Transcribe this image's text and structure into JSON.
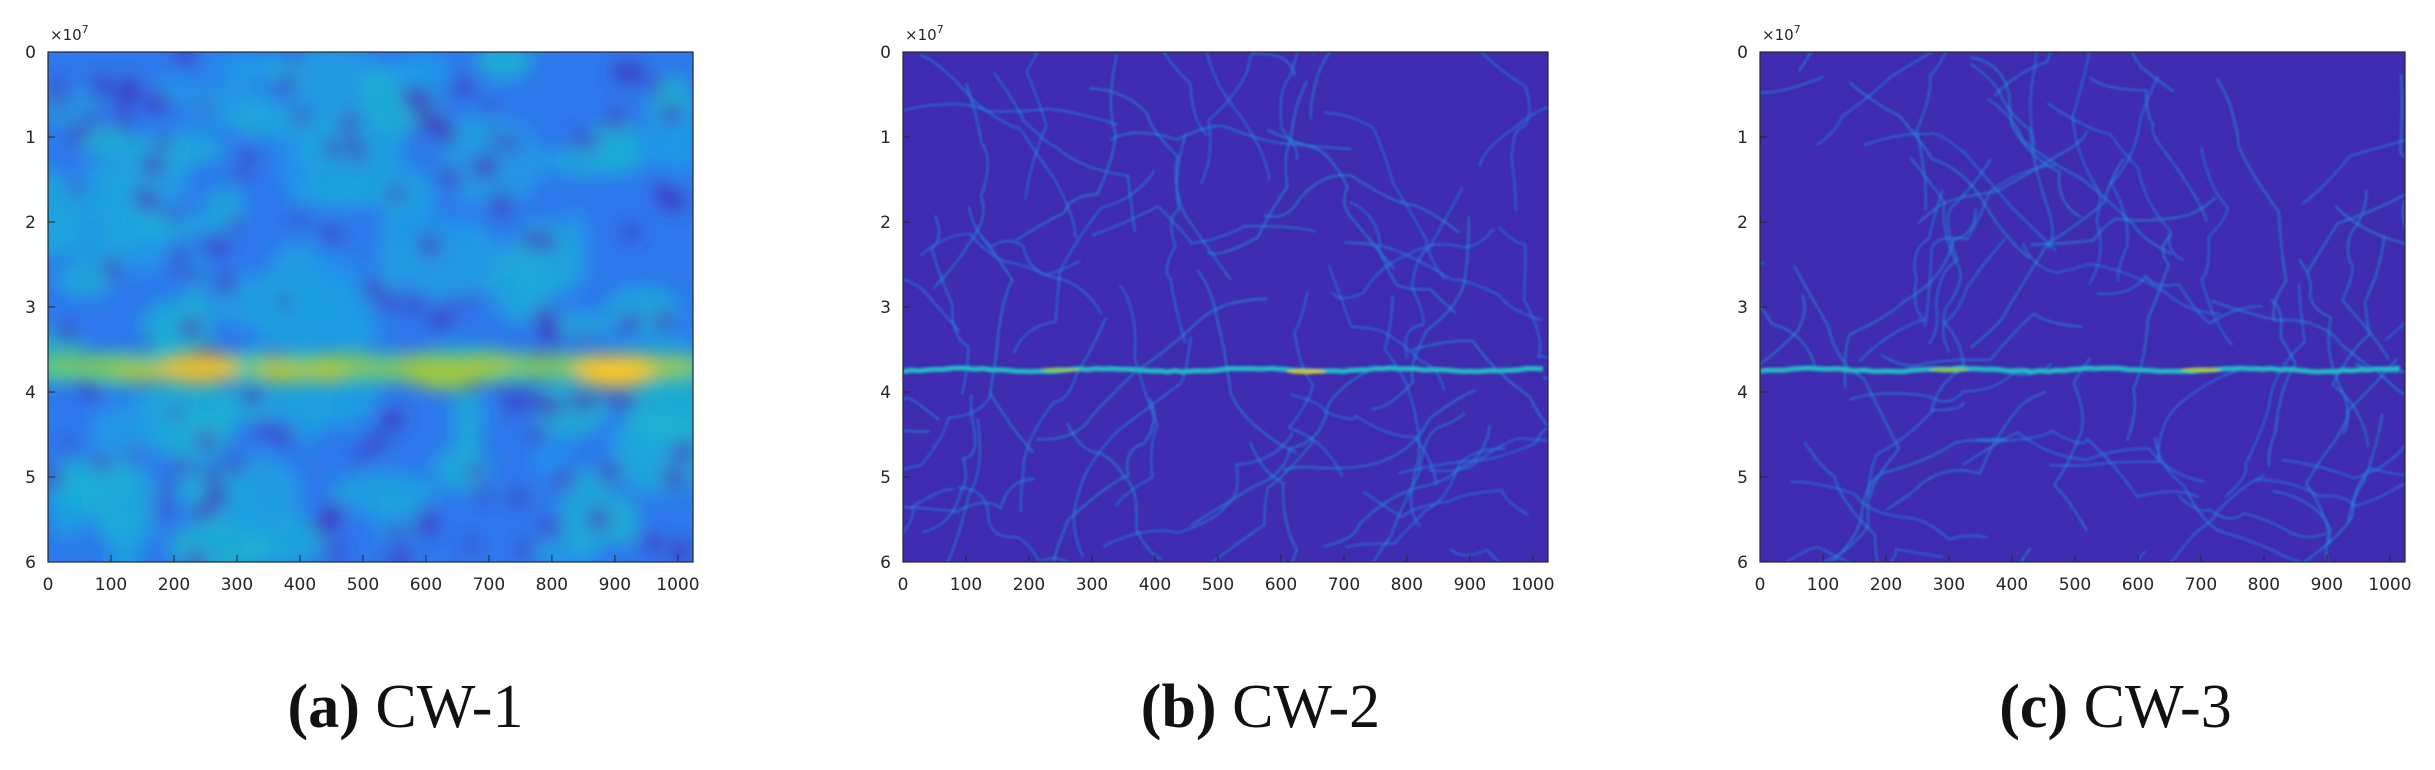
{
  "figure": {
    "panels": [
      {
        "caption_letter": "(a)",
        "caption_title": "CW-1",
        "exponent_label": "×10",
        "exponent_power": "7",
        "chart_data": {
          "type": "heatmap",
          "title": "",
          "xlabel": "",
          "ylabel": "",
          "xlim": [
            0,
            1024
          ],
          "ylim": [
            0,
            6
          ],
          "y_scale_factor": "1e7",
          "y_reversed": true,
          "x_ticks": [
            0,
            100,
            200,
            300,
            400,
            500,
            600,
            700,
            800,
            900,
            1000
          ],
          "y_ticks": [
            0,
            1,
            2,
            3,
            4,
            5,
            6
          ],
          "colormap": "parula",
          "background_level": 0.25,
          "ridge_y": 3.72,
          "ridge_style": "wide",
          "hotspots": [
            {
              "x": 240,
              "y": 3.72,
              "level": 0.85
            },
            {
              "x": 630,
              "y": 3.78,
              "level": 0.75
            },
            {
              "x": 900,
              "y": 3.76,
              "level": 0.9
            }
          ],
          "grid": false,
          "legend": "none"
        }
      },
      {
        "caption_letter": "(b)",
        "caption_title": "CW-2",
        "exponent_label": "×10",
        "exponent_power": "7",
        "chart_data": {
          "type": "heatmap",
          "title": "",
          "xlabel": "",
          "ylabel": "",
          "xlim": [
            0,
            1024
          ],
          "ylim": [
            0,
            6
          ],
          "y_scale_factor": "1e7",
          "y_reversed": true,
          "x_ticks": [
            0,
            100,
            200,
            300,
            400,
            500,
            600,
            700,
            800,
            900,
            1000
          ],
          "y_ticks": [
            0,
            1,
            2,
            3,
            4,
            5,
            6
          ],
          "colormap": "parula",
          "background_level": 0.02,
          "ridge_y": 3.74,
          "ridge_style": "thin",
          "hotspots": [
            {
              "x": 250,
              "y": 3.74,
              "level": 0.7
            },
            {
              "x": 640,
              "y": 3.76,
              "level": 0.8
            }
          ],
          "grid": false,
          "legend": "none"
        }
      },
      {
        "caption_letter": "(c)",
        "caption_title": "CW-3",
        "exponent_label": "×10",
        "exponent_power": "7",
        "chart_data": {
          "type": "heatmap",
          "title": "",
          "xlabel": "",
          "ylabel": "",
          "xlim": [
            0,
            1024
          ],
          "ylim": [
            0,
            6
          ],
          "y_scale_factor": "1e7",
          "y_reversed": true,
          "x_ticks": [
            0,
            100,
            200,
            300,
            400,
            500,
            600,
            700,
            800,
            900,
            1000
          ],
          "y_ticks": [
            0,
            1,
            2,
            3,
            4,
            5,
            6
          ],
          "colormap": "parula",
          "background_level": 0.02,
          "ridge_y": 3.74,
          "ridge_style": "thin",
          "hotspots": [
            {
              "x": 300,
              "y": 3.74,
              "level": 0.7
            },
            {
              "x": 700,
              "y": 3.74,
              "level": 0.75
            }
          ],
          "grid": false,
          "legend": "none"
        }
      }
    ]
  }
}
